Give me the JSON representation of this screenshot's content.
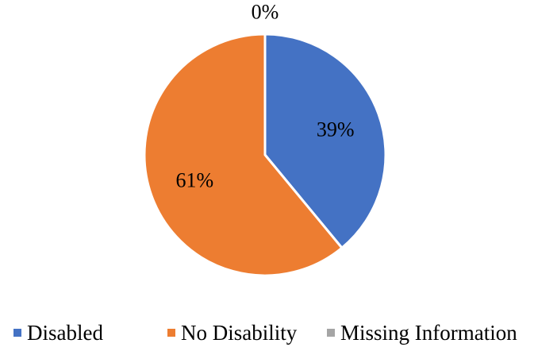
{
  "chart_data": {
    "type": "pie",
    "categories": [
      "Disabled",
      "No Disability",
      "Missing Information"
    ],
    "values": [
      39,
      61,
      0
    ],
    "data_labels": [
      "39%",
      "61%",
      "0%"
    ],
    "colors": [
      "#4472C4",
      "#ED7D31",
      "#A5A5A5"
    ],
    "title": "",
    "legend_position": "bottom",
    "start_angle": "top, clockwise"
  }
}
